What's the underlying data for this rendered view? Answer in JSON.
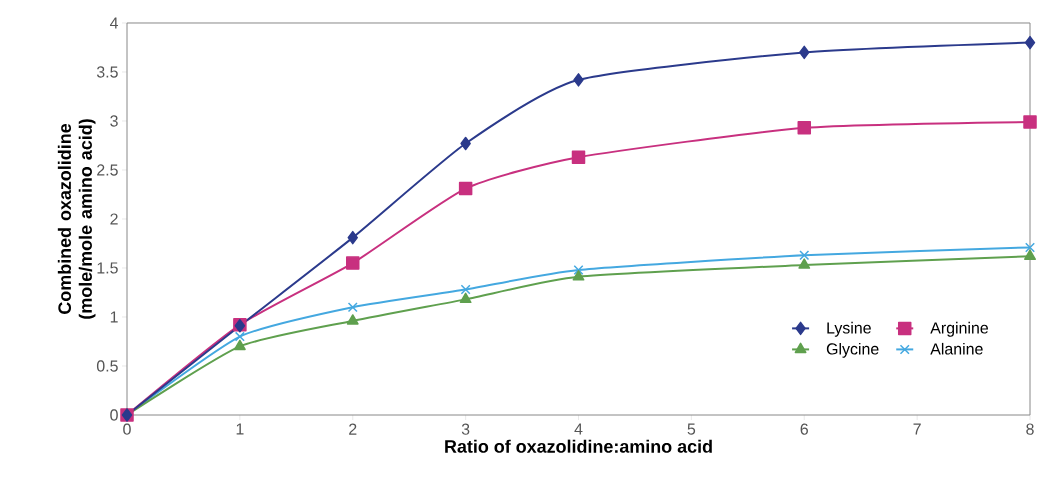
{
  "chart_data": {
    "type": "line",
    "xlabel": "Ratio of oxazolidine:amino acid",
    "ylabel": "Combined oxazolidine (mole/mole amino acid)",
    "x": [
      0,
      1,
      2,
      3,
      4,
      6,
      8
    ],
    "series": [
      {
        "name": "Lysine",
        "color": "#2b3a8c",
        "marker": "diamond",
        "values": [
          0,
          0.91,
          1.81,
          2.77,
          3.42,
          3.7,
          3.8
        ]
      },
      {
        "name": "Arginine",
        "color": "#c8307f",
        "marker": "square",
        "values": [
          0,
          0.92,
          1.55,
          2.31,
          2.63,
          2.93,
          2.99
        ]
      },
      {
        "name": "Glycine",
        "color": "#5fa04e",
        "marker": "triangle",
        "values": [
          0,
          0.7,
          0.96,
          1.18,
          1.41,
          1.53,
          1.62
        ]
      },
      {
        "name": "Alanine",
        "color": "#44a8e0",
        "marker": "cross",
        "values": [
          0,
          0.8,
          1.1,
          1.28,
          1.48,
          1.63,
          1.71
        ]
      }
    ],
    "xlim": [
      0,
      8
    ],
    "ylim": [
      0,
      4
    ],
    "xticks": [
      0,
      1,
      2,
      3,
      4,
      5,
      6,
      7,
      8
    ],
    "yticks": [
      0,
      0.5,
      1,
      1.5,
      2,
      2.5,
      3,
      3.5,
      4
    ],
    "grid": false,
    "legend": "bottom right",
    "line_style": "solid"
  }
}
